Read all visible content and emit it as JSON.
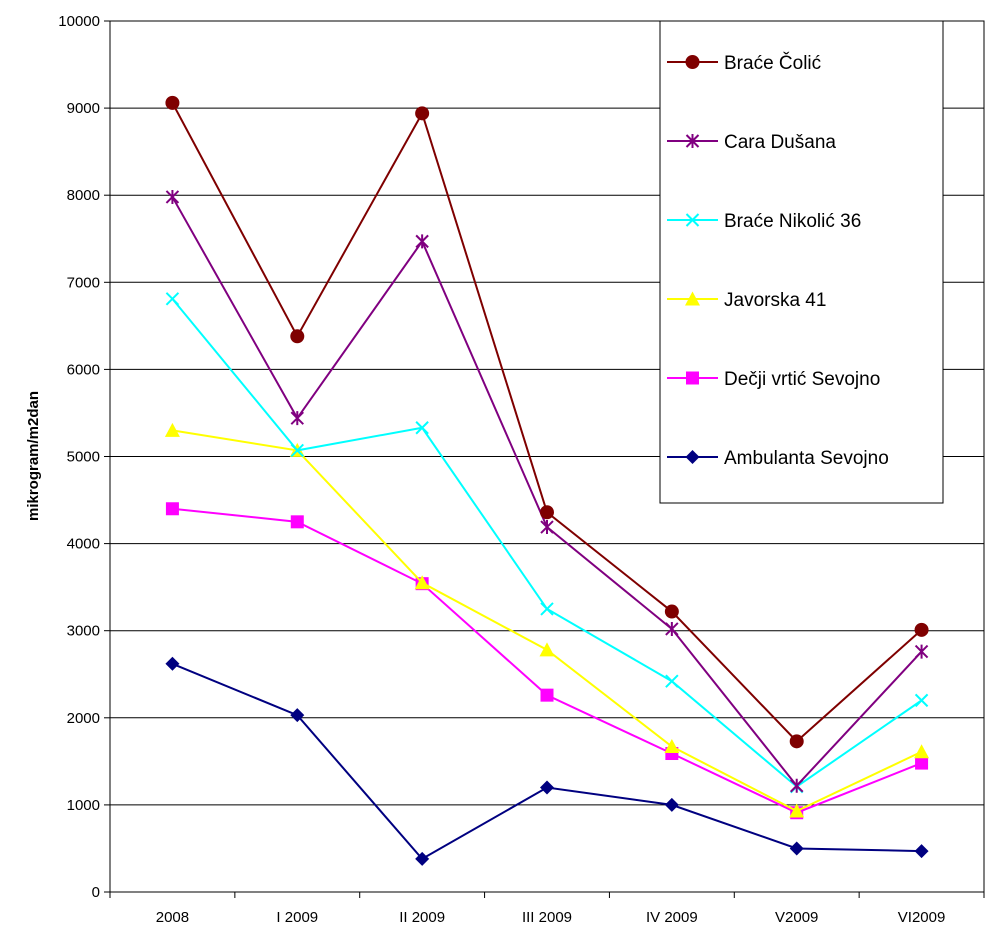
{
  "chart_data": {
    "type": "line",
    "ylabel": "mikrogram/m2dan",
    "xlabel": "",
    "title": "",
    "ylim": [
      0,
      10000
    ],
    "yticks": [
      0,
      1000,
      2000,
      3000,
      4000,
      5000,
      6000,
      7000,
      8000,
      9000,
      10000
    ],
    "categories": [
      "2008",
      "I 2009",
      "II 2009",
      "III 2009",
      "IV 2009",
      "V2009",
      "VI2009"
    ],
    "grid": "horizontal",
    "legend_position": "top-right",
    "series": [
      {
        "name": "Braće Čolić",
        "marker": "circle",
        "color": "#7f0000",
        "values": [
          9060,
          6380,
          8940,
          4360,
          3220,
          1730,
          3010
        ]
      },
      {
        "name": "Cara Dušana",
        "marker": "asterisk",
        "color": "#800080",
        "values": [
          7980,
          5440,
          7470,
          4190,
          3020,
          1220,
          2760
        ]
      },
      {
        "name": "Braće Nikolić 36",
        "marker": "x",
        "color": "#00ffff",
        "values": [
          6810,
          5070,
          5330,
          3250,
          2420,
          1210,
          2200
        ]
      },
      {
        "name": "Javorska 41",
        "marker": "triangle",
        "color": "#ffff00",
        "values": [
          5300,
          5070,
          3550,
          2780,
          1670,
          930,
          1610
        ]
      },
      {
        "name": "Dečji vrtić Sevojno",
        "marker": "square",
        "color": "#ff00ff",
        "values": [
          4400,
          4250,
          3540,
          2260,
          1590,
          910,
          1480
        ]
      },
      {
        "name": "Ambulanta Sevojno",
        "marker": "diamond",
        "color": "#000080",
        "values": [
          2620,
          2030,
          380,
          1200,
          1000,
          500,
          470
        ]
      }
    ]
  }
}
